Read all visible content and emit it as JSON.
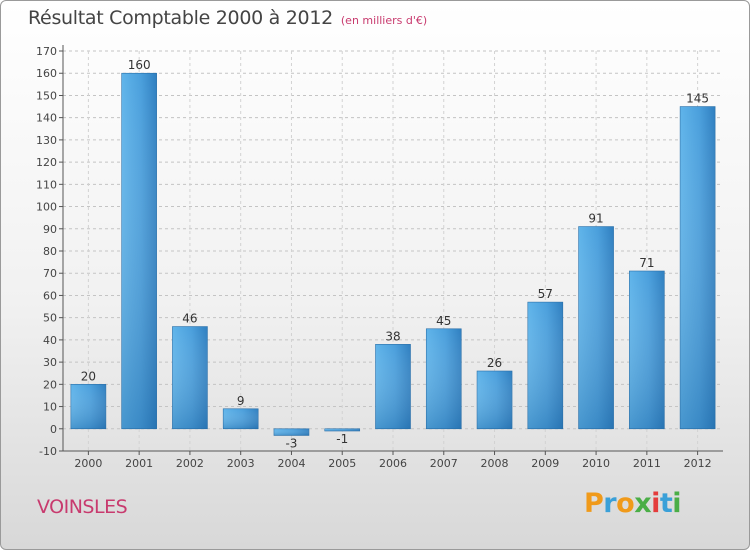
{
  "chart_data": {
    "type": "bar",
    "title": "Résultat Comptable 2000 à 2012",
    "subtitle": "(en milliers d'€)",
    "categories": [
      "2000",
      "2001",
      "2002",
      "2003",
      "2004",
      "2005",
      "2006",
      "2007",
      "2008",
      "2009",
      "2010",
      "2011",
      "2012"
    ],
    "values": [
      20,
      160,
      46,
      9,
      -3,
      -1,
      38,
      45,
      26,
      57,
      91,
      71,
      145
    ],
    "ylim": [
      -10,
      170
    ],
    "yticks": [
      -10,
      0,
      10,
      20,
      30,
      40,
      50,
      60,
      70,
      80,
      90,
      100,
      110,
      120,
      130,
      140,
      150,
      160,
      170
    ],
    "grid": "horizontal dashed",
    "bar_color": "#4a9fdc"
  },
  "commune": "VOINSLES",
  "logo": {
    "letters": [
      "P",
      "r",
      "o",
      "x",
      "i",
      "t",
      "i"
    ],
    "colors": [
      "#f09a1a",
      "#3aa0d8",
      "#f09a1a",
      "#4aae46",
      "#e43c3c",
      "#3aa0d8",
      "#4aae46"
    ]
  }
}
